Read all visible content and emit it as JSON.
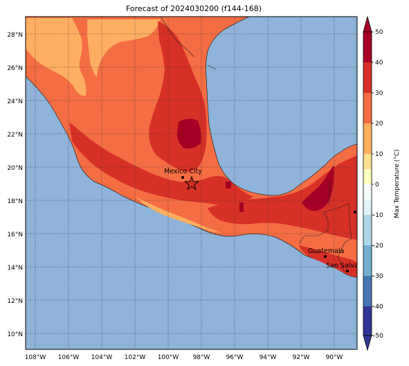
{
  "title": "Forecast of 2024030200 (f144-168)",
  "colorbar": {
    "label": "Max Temperature (°C)",
    "ticks": [
      "50",
      "40",
      "30",
      "20",
      "10",
      "0",
      "-10",
      "-20",
      "-30",
      "-40",
      "-50"
    ]
  },
  "axes": {
    "y_ticks": [
      "28°N",
      "26°N",
      "24°N",
      "22°N",
      "20°N",
      "18°N",
      "16°N",
      "14°N",
      "12°N",
      "10°N"
    ],
    "x_ticks": [
      "108°W",
      "106°W",
      "104°W",
      "102°W",
      "100°W",
      "98°W",
      "96°W",
      "94°W",
      "92°W",
      "90°W"
    ]
  },
  "cities": [
    {
      "name": "Mexico City"
    },
    {
      "name": "Guatemala"
    },
    {
      "name": "San Salvador"
    }
  ],
  "colors": {
    "ocean": "#8fb3d9",
    "t20_30": "#f46d43",
    "t30_40": "#d73027",
    "t40_50": "#a50026",
    "t10_20": "#fdae61"
  }
}
